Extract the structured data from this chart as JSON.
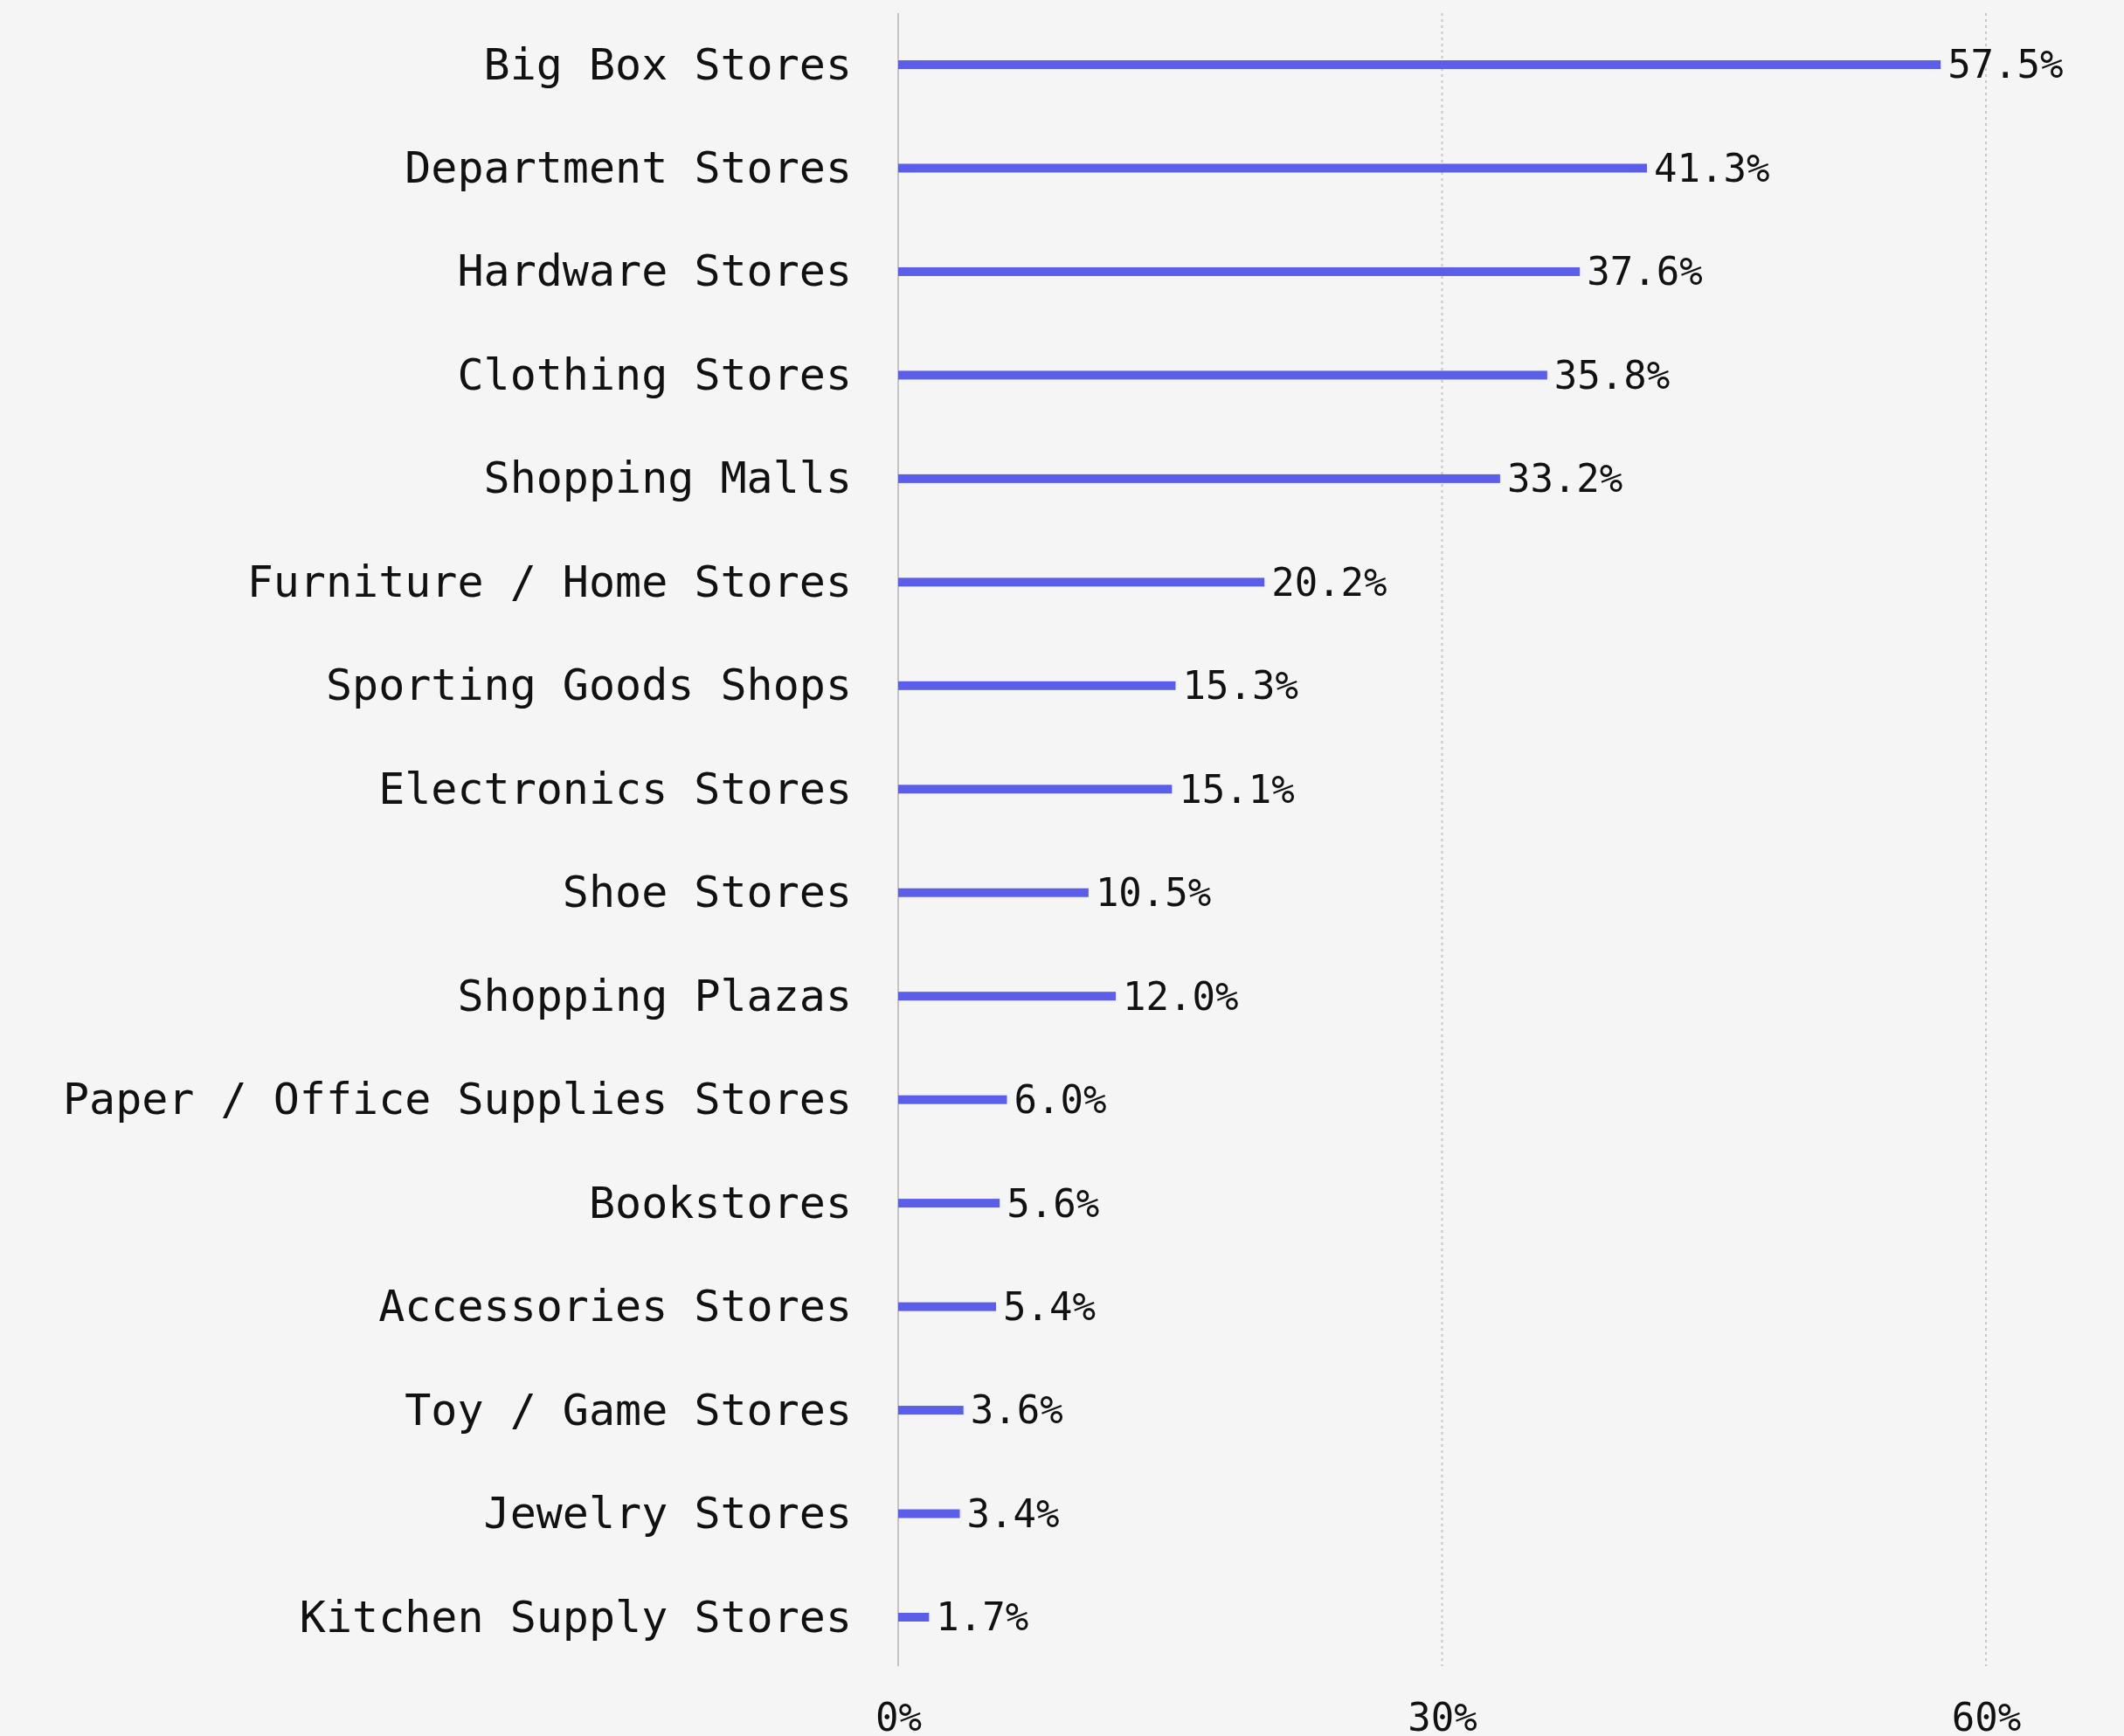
{
  "chart_data": {
    "type": "bar",
    "orientation": "horizontal",
    "categories": [
      "Big Box Stores",
      "Department Stores",
      "Hardware Stores",
      "Clothing Stores",
      "Shopping Malls",
      "Furniture / Home Stores",
      "Sporting Goods Shops",
      "Electronics Stores",
      "Shoe Stores",
      "Shopping Plazas",
      "Paper / Office Supplies Stores",
      "Bookstores",
      "Accessories Stores",
      "Toy / Game Stores",
      "Jewelry Stores",
      "Kitchen Supply Stores"
    ],
    "values": [
      57.5,
      41.3,
      37.6,
      35.8,
      33.2,
      20.2,
      15.3,
      15.1,
      10.5,
      12.0,
      6.0,
      5.6,
      5.4,
      3.6,
      3.4,
      1.7
    ],
    "value_labels": [
      "57.5%",
      "41.3%",
      "37.6%",
      "35.8%",
      "33.2%",
      "20.2%",
      "15.3%",
      "15.1%",
      "10.5%",
      "12.0%",
      "6.0%",
      "5.6%",
      "5.4%",
      "3.6%",
      "3.4%",
      "1.7%"
    ],
    "color": "#5a5ee8",
    "xlim": [
      0,
      60
    ],
    "xticks": [
      {
        "value": 0,
        "label": "0%"
      },
      {
        "value": 30,
        "label": "30%"
      },
      {
        "value": 60,
        "label": "60%"
      }
    ],
    "grid": "x"
  }
}
